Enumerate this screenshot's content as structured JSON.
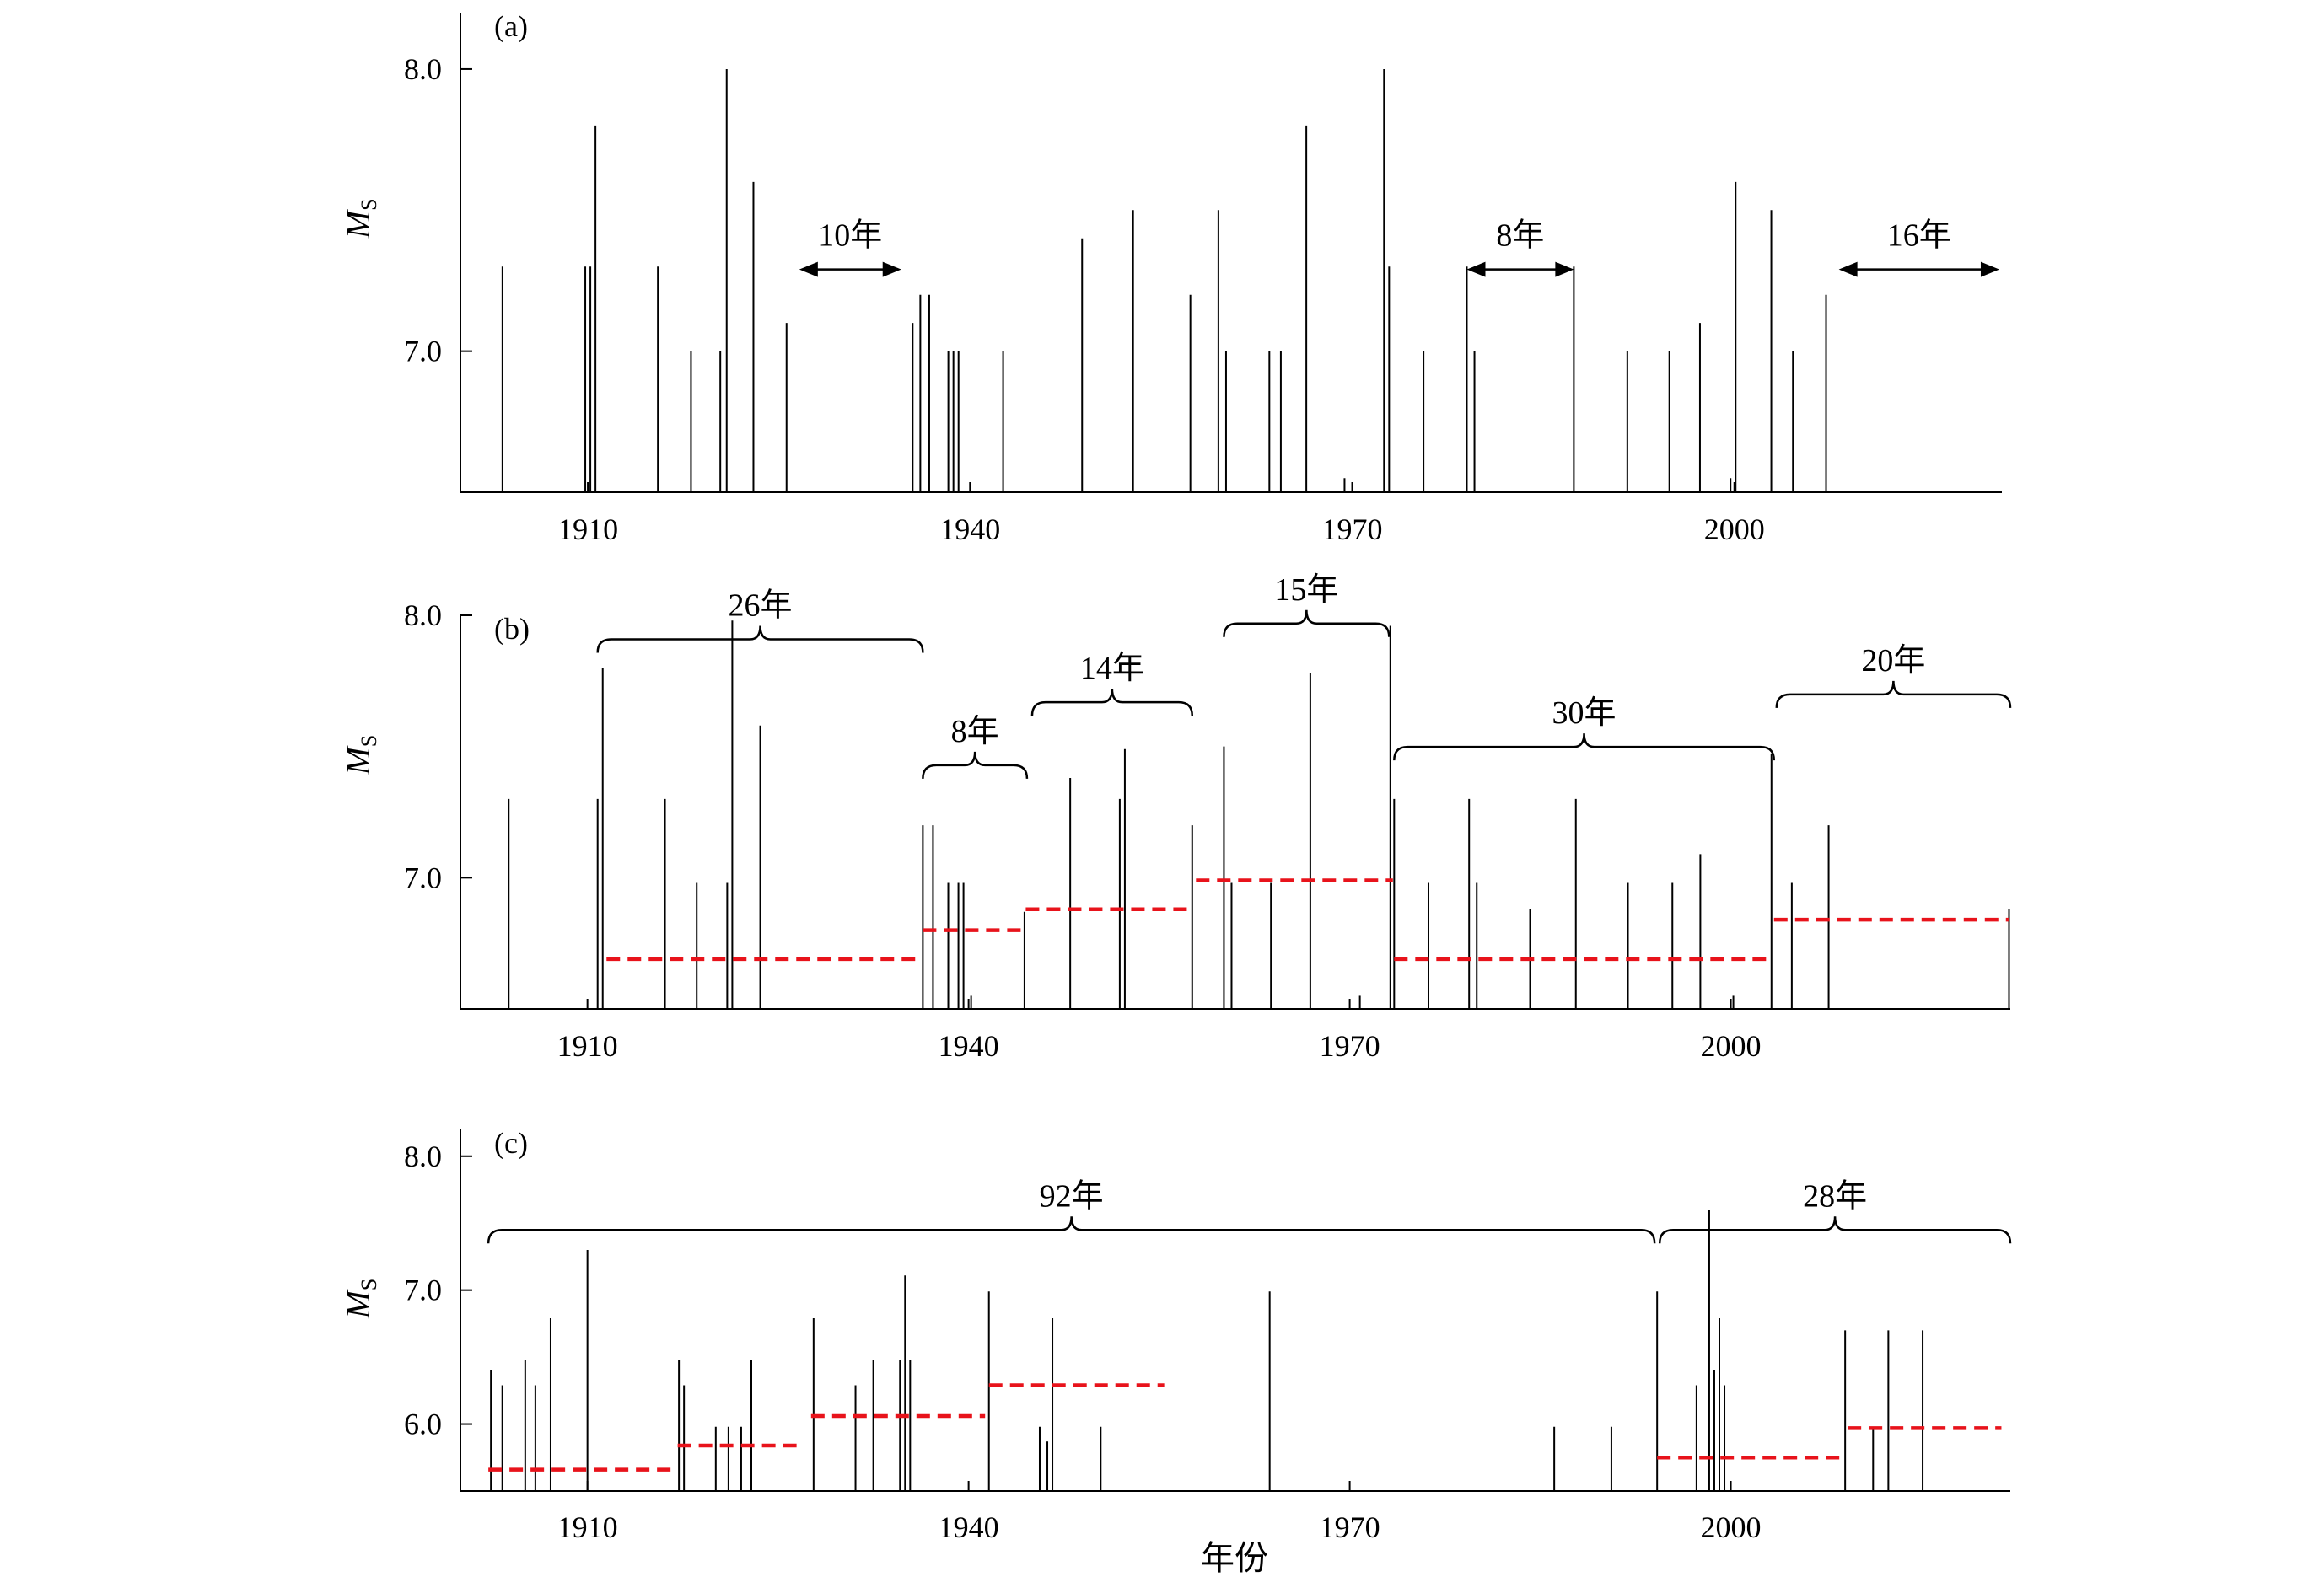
{
  "xlabel": "年份",
  "chart_data": [
    {
      "panel_label": "(a)",
      "type": "bar",
      "ylabel": "M",
      "ylabel_sub": "S",
      "xlim": [
        1900,
        2021
      ],
      "ylim": [
        6.5,
        8.2
      ],
      "baseline": 6.5,
      "xticks": [
        1910,
        1940,
        1970,
        2000
      ],
      "xtick_labels": [
        "1910",
        "1940",
        "1970",
        "2000"
      ],
      "yticks": [
        7.0,
        8.0
      ],
      "ytick_labels": [
        "7.0",
        "8.0"
      ],
      "events": [
        {
          "x": 1903.3,
          "m": 7.3
        },
        {
          "x": 1909.8,
          "m": 7.3
        },
        {
          "x": 1910.2,
          "m": 7.3
        },
        {
          "x": 1910.6,
          "m": 7.8
        },
        {
          "x": 1915.5,
          "m": 7.3
        },
        {
          "x": 1918.1,
          "m": 7.0
        },
        {
          "x": 1920.4,
          "m": 7.0
        },
        {
          "x": 1920.9,
          "m": 8.0
        },
        {
          "x": 1923.0,
          "m": 7.6
        },
        {
          "x": 1925.6,
          "m": 7.1
        },
        {
          "x": 1935.5,
          "m": 7.1
        },
        {
          "x": 1936.1,
          "m": 7.2
        },
        {
          "x": 1936.8,
          "m": 7.2
        },
        {
          "x": 1938.3,
          "m": 7.0
        },
        {
          "x": 1938.7,
          "m": 7.0
        },
        {
          "x": 1939.1,
          "m": 7.0
        },
        {
          "x": 1942.6,
          "m": 7.0
        },
        {
          "x": 1948.8,
          "m": 7.4
        },
        {
          "x": 1952.8,
          "m": 7.5
        },
        {
          "x": 1957.3,
          "m": 7.2
        },
        {
          "x": 1959.5,
          "m": 7.5
        },
        {
          "x": 1960.1,
          "m": 7.0
        },
        {
          "x": 1963.5,
          "m": 7.0
        },
        {
          "x": 1964.4,
          "m": 7.0
        },
        {
          "x": 1966.4,
          "m": 7.8
        },
        {
          "x": 1969.4,
          "m": 6.55
        },
        {
          "x": 1972.5,
          "m": 8.0
        },
        {
          "x": 1972.9,
          "m": 7.3
        },
        {
          "x": 1975.6,
          "m": 7.0
        },
        {
          "x": 1979.0,
          "m": 7.3
        },
        {
          "x": 1979.6,
          "m": 7.0
        },
        {
          "x": 1987.4,
          "m": 7.3
        },
        {
          "x": 1991.6,
          "m": 7.0
        },
        {
          "x": 1994.9,
          "m": 7.0
        },
        {
          "x": 1997.3,
          "m": 7.1
        },
        {
          "x": 1999.7,
          "m": 6.55
        },
        {
          "x": 2000.1,
          "m": 7.6
        },
        {
          "x": 2002.9,
          "m": 7.5
        },
        {
          "x": 2004.6,
          "m": 7.0
        },
        {
          "x": 2007.2,
          "m": 7.2
        }
      ],
      "annotations": [
        {
          "type": "arrow",
          "label": "10年",
          "x1": 1926.6,
          "x2": 1934.6,
          "y": 7.29
        },
        {
          "type": "arrow",
          "label": "8年",
          "x1": 1979.0,
          "x2": 1987.4,
          "y": 7.29
        },
        {
          "type": "arrow",
          "label": "16年",
          "x1": 2008.2,
          "x2": 2020.8,
          "y": 7.29
        }
      ]
    },
    {
      "panel_label": "(b)",
      "type": "bar",
      "ylabel": "M",
      "ylabel_sub": "S",
      "xlim": [
        1900,
        2022
      ],
      "ylim": [
        6.5,
        8.0
      ],
      "baseline": 6.5,
      "xticks": [
        1910,
        1940,
        1970,
        2000
      ],
      "xtick_labels": [
        "1910",
        "1940",
        "1970",
        "2000"
      ],
      "yticks": [
        7.0,
        8.0
      ],
      "ytick_labels": [
        "7.0",
        "8.0"
      ],
      "events": [
        {
          "x": 1903.8,
          "m": 7.3
        },
        {
          "x": 1910.8,
          "m": 7.3
        },
        {
          "x": 1911.2,
          "m": 7.8
        },
        {
          "x": 1916.1,
          "m": 7.3
        },
        {
          "x": 1918.6,
          "m": 6.98
        },
        {
          "x": 1921.0,
          "m": 6.98
        },
        {
          "x": 1921.4,
          "m": 7.98
        },
        {
          "x": 1923.6,
          "m": 7.58
        },
        {
          "x": 1936.4,
          "m": 7.2
        },
        {
          "x": 1937.2,
          "m": 7.2
        },
        {
          "x": 1938.4,
          "m": 6.98
        },
        {
          "x": 1939.2,
          "m": 6.98
        },
        {
          "x": 1939.6,
          "m": 6.98
        },
        {
          "x": 1940.2,
          "m": 6.55
        },
        {
          "x": 1944.4,
          "m": 6.87
        },
        {
          "x": 1948.0,
          "m": 7.38
        },
        {
          "x": 1951.9,
          "m": 7.3
        },
        {
          "x": 1952.3,
          "m": 7.49
        },
        {
          "x": 1957.6,
          "m": 7.2
        },
        {
          "x": 1960.1,
          "m": 7.5
        },
        {
          "x": 1960.7,
          "m": 6.98
        },
        {
          "x": 1963.8,
          "m": 6.98
        },
        {
          "x": 1966.9,
          "m": 7.78
        },
        {
          "x": 1970.8,
          "m": 6.55
        },
        {
          "x": 1973.2,
          "m": 7.96
        },
        {
          "x": 1973.5,
          "m": 7.3
        },
        {
          "x": 1976.2,
          "m": 6.98
        },
        {
          "x": 1979.4,
          "m": 7.3
        },
        {
          "x": 1980.0,
          "m": 6.98
        },
        {
          "x": 1984.2,
          "m": 6.88
        },
        {
          "x": 1987.8,
          "m": 7.3
        },
        {
          "x": 1991.9,
          "m": 6.98
        },
        {
          "x": 1995.4,
          "m": 6.98
        },
        {
          "x": 1997.6,
          "m": 7.09
        },
        {
          "x": 2000.2,
          "m": 6.55
        },
        {
          "x": 2003.2,
          "m": 7.47
        },
        {
          "x": 2004.8,
          "m": 6.98
        },
        {
          "x": 2007.7,
          "m": 7.2
        },
        {
          "x": 2021.9,
          "m": 6.88
        }
      ],
      "means": [
        {
          "x1": 1911.5,
          "x2": 1936.0,
          "m": 6.69
        },
        {
          "x1": 1936.4,
          "x2": 1944.2,
          "m": 6.8
        },
        {
          "x1": 1944.5,
          "x2": 1957.6,
          "m": 6.88
        },
        {
          "x1": 1957.9,
          "x2": 1973.4,
          "m": 6.99
        },
        {
          "x1": 1973.5,
          "x2": 2003.2,
          "m": 6.69
        },
        {
          "x1": 2003.4,
          "x2": 2021.9,
          "m": 6.84
        }
      ],
      "annotations": [
        {
          "type": "brace",
          "label": "26年",
          "x1": 1910.8,
          "x2": 1936.4,
          "y": 7.96
        },
        {
          "type": "brace",
          "label": "8年",
          "x1": 1936.4,
          "x2": 1944.6,
          "y": 7.48
        },
        {
          "type": "brace",
          "label": "14年",
          "x1": 1945.0,
          "x2": 1957.6,
          "y": 7.72
        },
        {
          "type": "brace",
          "label": "15年",
          "x1": 1960.1,
          "x2": 1973.1,
          "y": 8.02
        },
        {
          "type": "brace",
          "label": "30年",
          "x1": 1973.5,
          "x2": 2003.4,
          "y": 7.55
        },
        {
          "type": "brace",
          "label": "20年",
          "x1": 2003.6,
          "x2": 2022.0,
          "y": 7.75
        }
      ]
    },
    {
      "panel_label": "(c)",
      "type": "bar",
      "ylabel": "M",
      "ylabel_sub": "S",
      "xlim": [
        1900,
        2022
      ],
      "ylim": [
        5.5,
        8.2
      ],
      "baseline": 5.5,
      "xticks": [
        1910,
        1940,
        1970,
        2000
      ],
      "xtick_labels": [
        "1910",
        "1940",
        "1970",
        "2000"
      ],
      "yticks": [
        6.0,
        7.0,
        8.0
      ],
      "ytick_labels": [
        "6.0",
        "7.0",
        "8.0"
      ],
      "events": [
        {
          "x": 1902.4,
          "m": 6.4
        },
        {
          "x": 1903.3,
          "m": 6.29
        },
        {
          "x": 1905.1,
          "m": 6.48
        },
        {
          "x": 1905.9,
          "m": 6.29
        },
        {
          "x": 1907.1,
          "m": 6.79
        },
        {
          "x": 1910.0,
          "m": 7.3
        },
        {
          "x": 1917.2,
          "m": 6.48
        },
        {
          "x": 1917.6,
          "m": 6.29
        },
        {
          "x": 1920.1,
          "m": 5.98
        },
        {
          "x": 1921.1,
          "m": 5.98
        },
        {
          "x": 1922.1,
          "m": 5.98
        },
        {
          "x": 1922.9,
          "m": 6.48
        },
        {
          "x": 1927.8,
          "m": 6.79
        },
        {
          "x": 1931.1,
          "m": 6.29
        },
        {
          "x": 1932.5,
          "m": 6.48
        },
        {
          "x": 1934.6,
          "m": 6.48
        },
        {
          "x": 1935.0,
          "m": 7.11
        },
        {
          "x": 1935.4,
          "m": 6.48
        },
        {
          "x": 1941.6,
          "m": 6.99
        },
        {
          "x": 1945.6,
          "m": 5.98
        },
        {
          "x": 1946.2,
          "m": 5.87
        },
        {
          "x": 1946.6,
          "m": 6.79
        },
        {
          "x": 1950.4,
          "m": 5.98
        },
        {
          "x": 1963.7,
          "m": 6.99
        },
        {
          "x": 1986.1,
          "m": 5.98
        },
        {
          "x": 1990.6,
          "m": 5.98
        },
        {
          "x": 1994.2,
          "m": 6.99
        },
        {
          "x": 1997.3,
          "m": 6.29
        },
        {
          "x": 1998.3,
          "m": 7.6
        },
        {
          "x": 1998.7,
          "m": 6.4
        },
        {
          "x": 1999.1,
          "m": 6.79
        },
        {
          "x": 1999.5,
          "m": 6.29
        },
        {
          "x": 2009.0,
          "m": 6.7
        },
        {
          "x": 2011.2,
          "m": 5.98
        },
        {
          "x": 2012.4,
          "m": 6.7
        },
        {
          "x": 2015.1,
          "m": 6.7
        }
      ],
      "means": [
        {
          "x1": 1902.2,
          "x2": 1916.7,
          "m": 5.66
        },
        {
          "x1": 1917.1,
          "x2": 1926.8,
          "m": 5.84
        },
        {
          "x1": 1927.6,
          "x2": 1941.3,
          "m": 6.06
        },
        {
          "x1": 1941.6,
          "x2": 1955.4,
          "m": 6.29
        },
        {
          "x1": 1994.2,
          "x2": 2008.8,
          "m": 5.75
        },
        {
          "x1": 2009.2,
          "x2": 2021.3,
          "m": 5.97
        }
      ],
      "annotations": [
        {
          "type": "brace",
          "label": "92年",
          "x1": 1902.2,
          "x2": 1994.0,
          "y": 7.55
        },
        {
          "type": "brace",
          "label": "28年",
          "x1": 1994.4,
          "x2": 2022.0,
          "y": 7.55
        }
      ]
    }
  ]
}
